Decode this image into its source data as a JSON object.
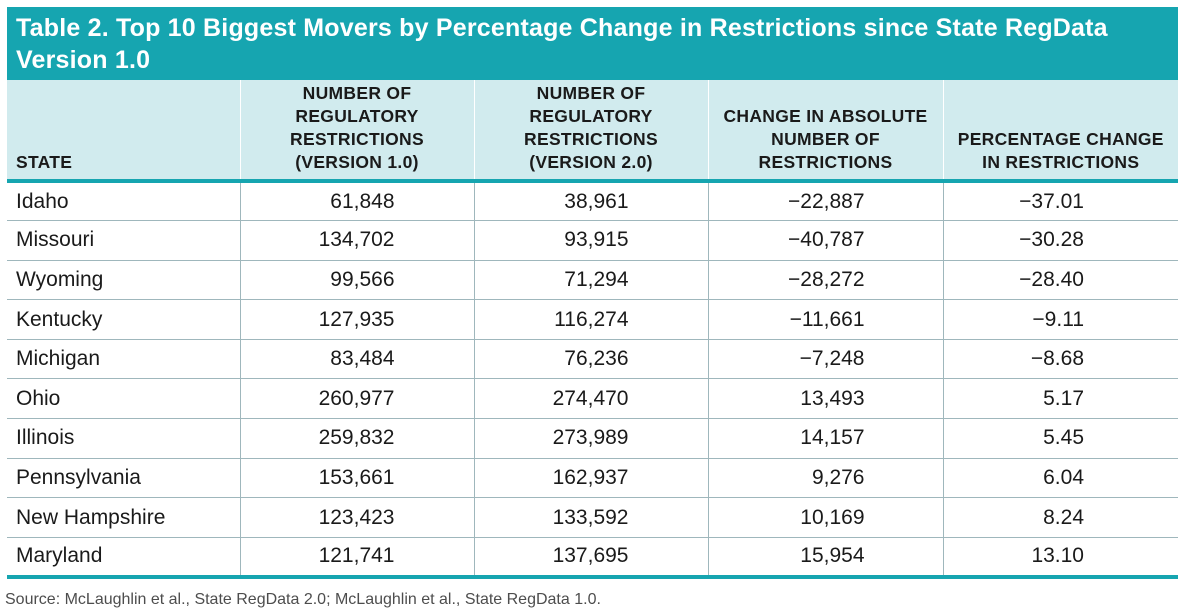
{
  "table": {
    "title": "Table 2. Top 10 Biggest Movers by Percentage Change in Restrictions since State RegData Version 1.0",
    "headers": [
      "STATE",
      "NUMBER OF REGULATORY RESTRICTIONS (VERSION 1.0)",
      "NUMBER OF REGULATORY RESTRICTIONS (VERSION 2.0)",
      "CHANGE IN ABSOLUTE NUMBER OF RESTRICTIONS",
      "PERCENTAGE CHANGE IN RESTRICTIONS"
    ],
    "rows": [
      [
        "Idaho",
        "61,848",
        "38,961",
        "−22,887",
        "−37.01"
      ],
      [
        "Missouri",
        "134,702",
        "93,915",
        "−40,787",
        "−30.28"
      ],
      [
        "Wyoming",
        "99,566",
        "71,294",
        "−28,272",
        "−28.40"
      ],
      [
        "Kentucky",
        "127,935",
        "116,274",
        "−11,661",
        "−9.11"
      ],
      [
        "Michigan",
        "83,484",
        "76,236",
        "−7,248",
        "−8.68"
      ],
      [
        "Ohio",
        "260,977",
        "274,470",
        "13,493",
        "5.17"
      ],
      [
        "Illinois",
        "259,832",
        "273,989",
        "14,157",
        "5.45"
      ],
      [
        "Pennsylvania",
        "153,661",
        "162,937",
        "9,276",
        "6.04"
      ],
      [
        "New Hampshire",
        "123,423",
        "133,592",
        "10,169",
        "8.24"
      ],
      [
        "Maryland",
        "121,741",
        "137,695",
        "15,954",
        "13.10"
      ]
    ],
    "source": "Source: McLaughlin et al., State RegData 2.0; McLaughlin et al., State RegData 1.0."
  },
  "colors": {
    "accent": "#16a5b0",
    "header_bg": "#d1ebee"
  }
}
